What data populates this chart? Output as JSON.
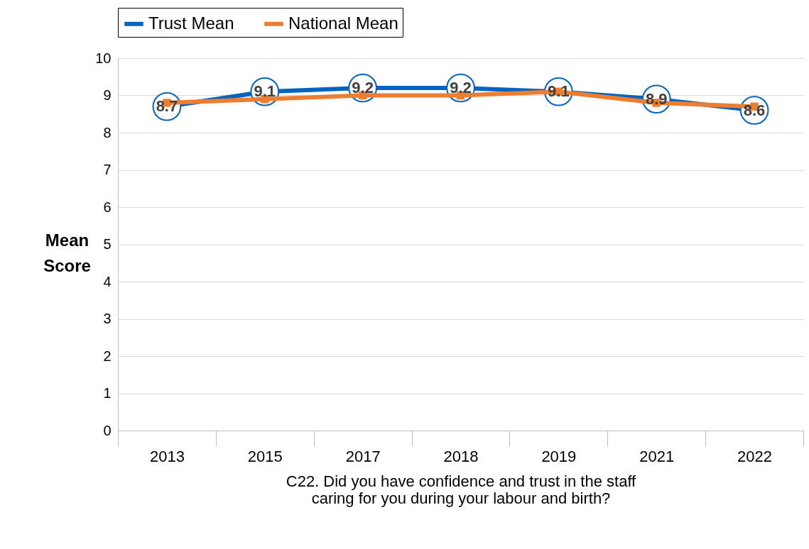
{
  "chart_data": {
    "type": "line",
    "xlabel": "C22. Did you have confidence and trust in the staff caring for you during your labour and birth?",
    "ylabel": "Mean Score",
    "categories": [
      "2013",
      "2015",
      "2017",
      "2018",
      "2019",
      "2021",
      "2022"
    ],
    "series": [
      {
        "name": "Trust Mean",
        "color": "#0563c1",
        "marker": "circle",
        "values": [
          8.7,
          9.1,
          9.2,
          9.2,
          9.1,
          8.9,
          8.6
        ],
        "value_labels": [
          "8.7",
          "9.1",
          "9.2",
          "9.2",
          "9.1",
          "8.9",
          "8.6"
        ]
      },
      {
        "name": "National Mean",
        "color": "#ed7d31",
        "marker": "square",
        "values": [
          8.8,
          8.9,
          9.0,
          9.0,
          9.1,
          8.8,
          8.7
        ]
      }
    ],
    "ylim": [
      0,
      10
    ],
    "yticks": [
      0,
      1,
      2,
      3,
      4,
      5,
      6,
      7,
      8,
      9,
      10
    ],
    "grid": "y",
    "legend": "top"
  }
}
